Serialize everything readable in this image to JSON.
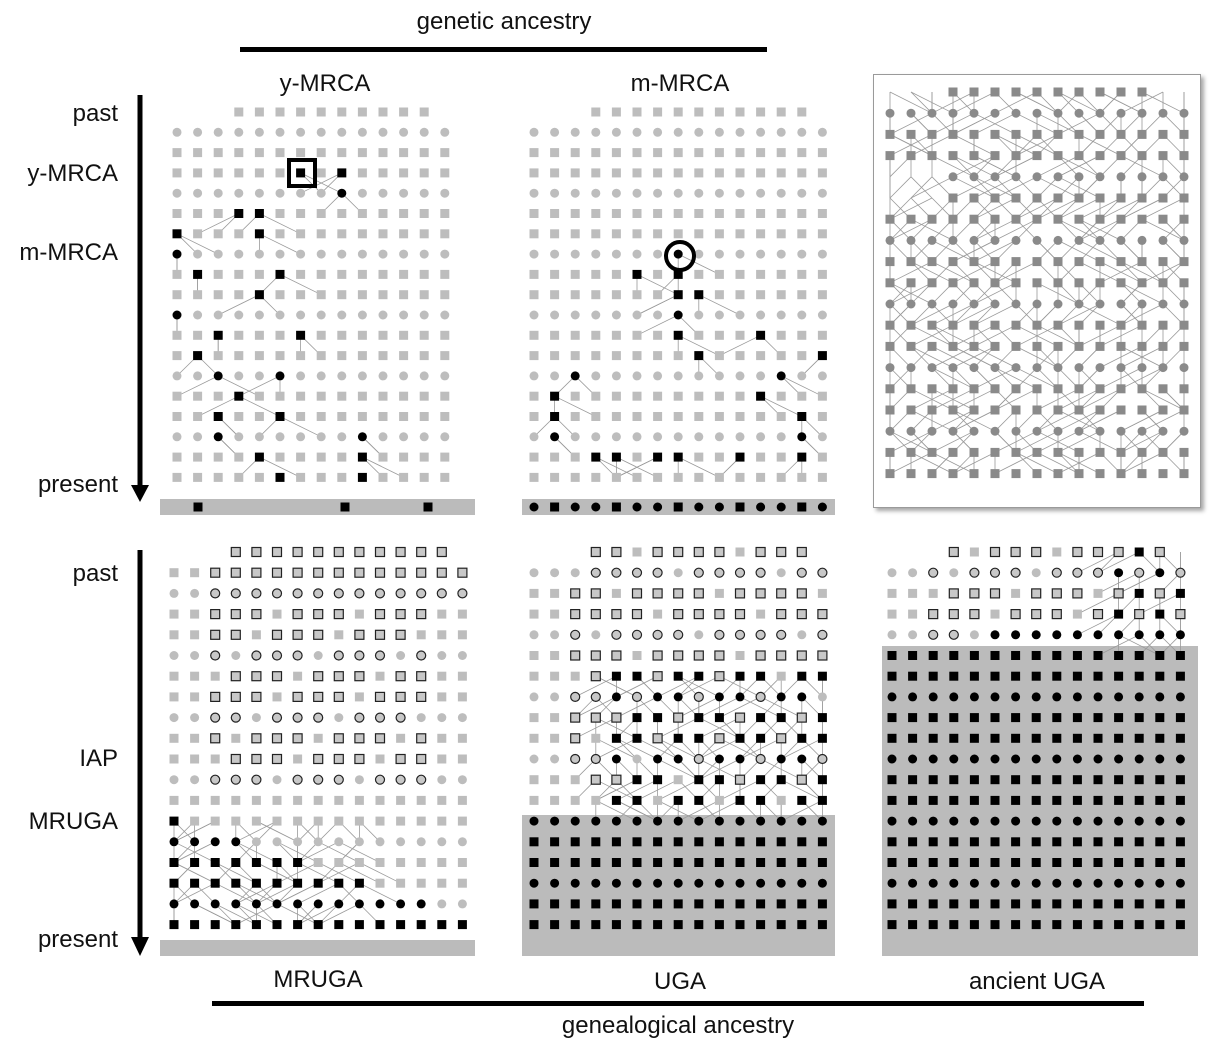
{
  "top_heading": "genetic ancestry",
  "bottom_heading": "genealogical ancestry",
  "time_axis_top": {
    "past": "past",
    "y_mrca": "y-MRCA",
    "m_mrca": "m-MRCA",
    "present": "present"
  },
  "time_axis_bottom": {
    "past": "past",
    "iap": "IAP",
    "mruga": "MRUGA",
    "present": "present"
  },
  "panels": {
    "y_mrca": "y-MRCA",
    "m_mrca": "m-MRCA",
    "mruga": "MRUGA",
    "uga": "UGA",
    "ancient_uga": "ancient UGA"
  },
  "colors": {
    "ancestor": "#000000",
    "non_ancestor": "#bdbdbd",
    "partial_ancestor": "#c8c8c8",
    "shading": "#bbbbbb",
    "edge": "#9a9a9a"
  }
}
